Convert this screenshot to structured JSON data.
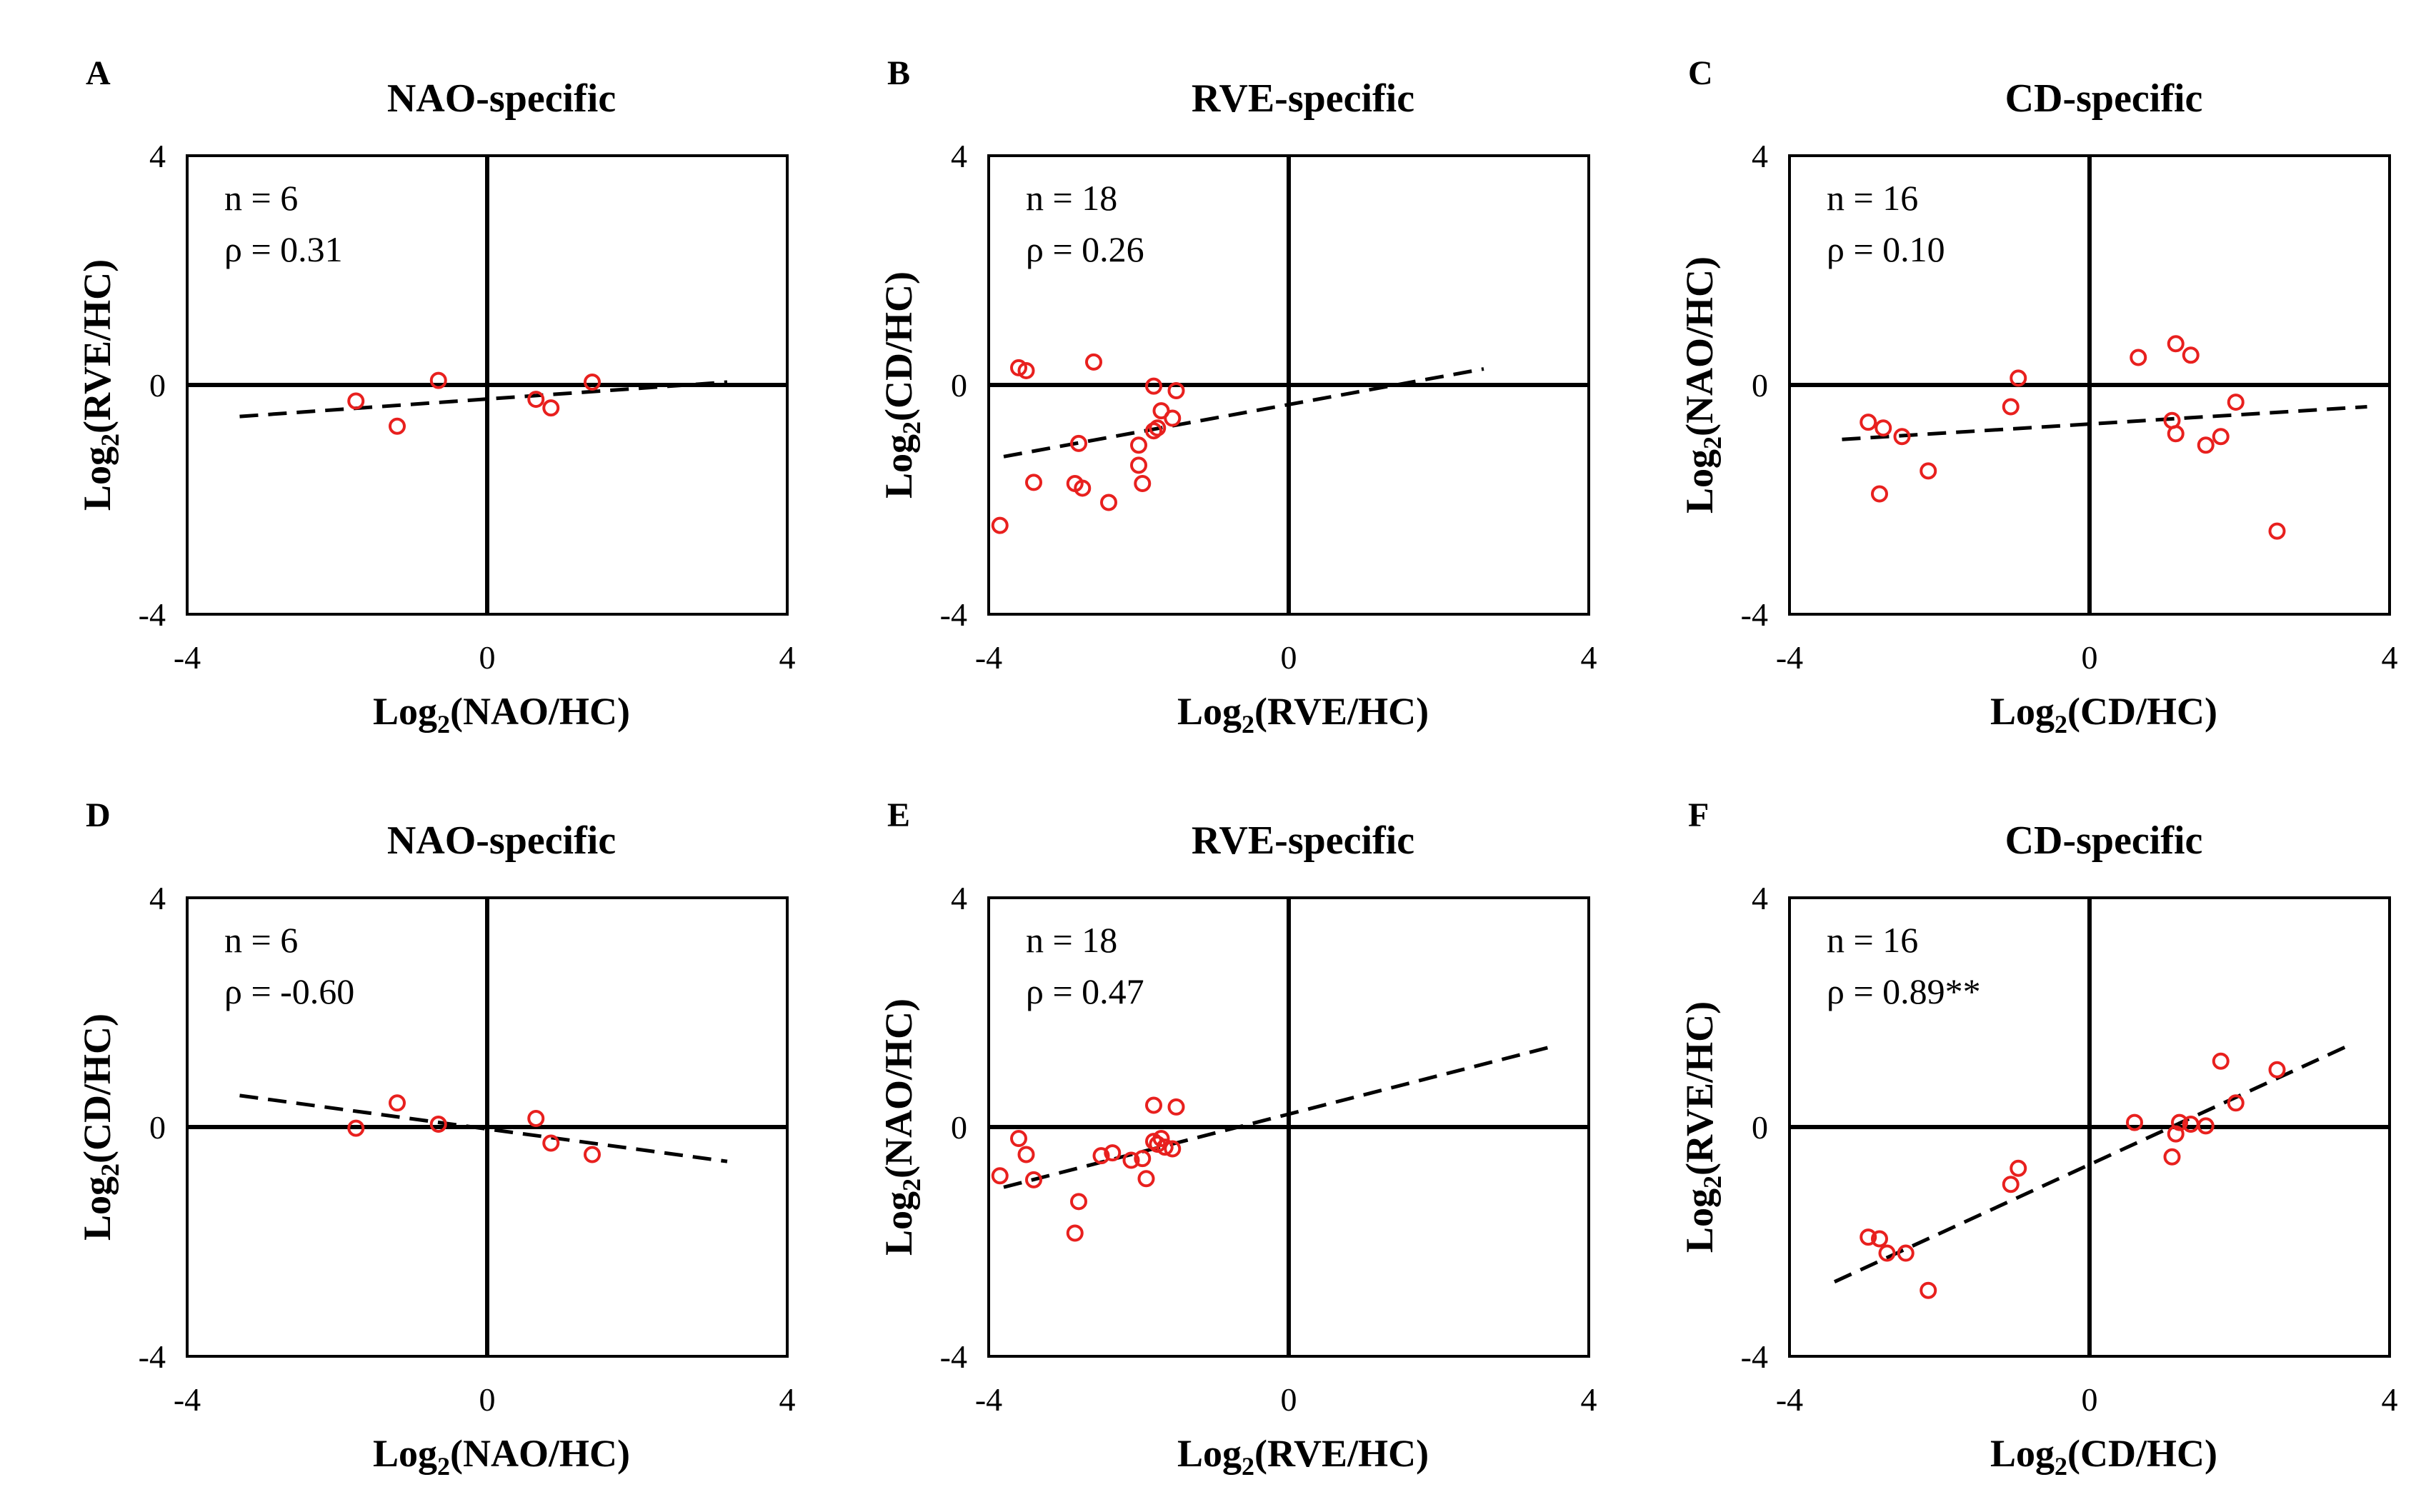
{
  "colors": {
    "point": "#e8201e",
    "axis": "#000000",
    "background": "#ffffff"
  },
  "chart_data": [
    {
      "panel": "A",
      "type": "scatter",
      "title": "NAO-specific",
      "xlabel": {
        "prefix": "Log",
        "sub": "2",
        "suffix": "(NAO/HC)"
      },
      "ylabel": {
        "prefix": "Log",
        "sub": "2",
        "suffix": "(RVE/HC)"
      },
      "xlim": [
        -4,
        4
      ],
      "ylim": [
        -4,
        4
      ],
      "xticks": [
        "-4",
        "0",
        "4"
      ],
      "yticks": [
        "4",
        "0",
        "-4"
      ],
      "n_text": "n = 6",
      "rho_text": "ρ = 0.31",
      "points": [
        [
          -1.75,
          -0.28
        ],
        [
          -1.2,
          -0.72
        ],
        [
          -0.65,
          0.08
        ],
        [
          0.65,
          -0.25
        ],
        [
          0.85,
          -0.4
        ],
        [
          1.4,
          0.05
        ]
      ],
      "trendline": [
        [
          -3.3,
          -0.55
        ],
        [
          3.2,
          0.05
        ]
      ]
    },
    {
      "panel": "B",
      "type": "scatter",
      "title": "RVE-specific",
      "xlabel": {
        "prefix": "Log",
        "sub": "2",
        "suffix": "(RVE/HC)"
      },
      "ylabel": {
        "prefix": "Log",
        "sub": "2",
        "suffix": "(CD/HC)"
      },
      "xlim": [
        -4,
        4
      ],
      "ylim": [
        -4,
        4
      ],
      "xticks": [
        "-4",
        "0",
        "4"
      ],
      "yticks": [
        "4",
        "0",
        "-4"
      ],
      "n_text": "n = 18",
      "rho_text": "ρ = 0.26",
      "points": [
        [
          -3.6,
          0.3
        ],
        [
          -3.5,
          0.25
        ],
        [
          -2.6,
          0.4
        ],
        [
          -1.8,
          -0.02
        ],
        [
          -1.5,
          -0.1
        ],
        [
          -1.7,
          -0.45
        ],
        [
          -1.55,
          -0.58
        ],
        [
          -1.8,
          -0.8
        ],
        [
          -2.0,
          -1.05
        ],
        [
          -2.8,
          -1.02
        ],
        [
          -2.0,
          -1.4
        ],
        [
          -1.95,
          -1.72
        ],
        [
          -3.4,
          -1.7
        ],
        [
          -2.85,
          -1.72
        ],
        [
          -2.75,
          -1.8
        ],
        [
          -2.4,
          -2.05
        ],
        [
          -3.85,
          -2.45
        ],
        [
          -1.75,
          -0.75
        ]
      ],
      "trendline": [
        [
          -3.8,
          -1.25
        ],
        [
          2.6,
          0.28
        ]
      ]
    },
    {
      "panel": "C",
      "type": "scatter",
      "title": "CD-specific",
      "xlabel": {
        "prefix": "Log",
        "sub": "2",
        "suffix": "(CD/HC)"
      },
      "ylabel": {
        "prefix": "Log",
        "sub": "2",
        "suffix": "(NAO/HC)"
      },
      "xlim": [
        -4,
        4
      ],
      "ylim": [
        -4,
        4
      ],
      "xticks": [
        "-4",
        "0",
        "4"
      ],
      "yticks": [
        "4",
        "0",
        "-4"
      ],
      "n_text": "n = 16",
      "rho_text": "ρ = 0.10",
      "points": [
        [
          -2.95,
          -0.65
        ],
        [
          -2.75,
          -0.75
        ],
        [
          -2.5,
          -0.9
        ],
        [
          -2.8,
          -1.9
        ],
        [
          -2.15,
          -1.5
        ],
        [
          -1.05,
          -0.38
        ],
        [
          -0.95,
          0.12
        ],
        [
          0.65,
          0.48
        ],
        [
          1.15,
          0.72
        ],
        [
          1.35,
          0.52
        ],
        [
          1.1,
          -0.62
        ],
        [
          1.15,
          -0.85
        ],
        [
          1.55,
          -1.05
        ],
        [
          1.75,
          -0.9
        ],
        [
          1.95,
          -0.3
        ],
        [
          2.5,
          -2.55
        ]
      ],
      "trendline": [
        [
          -3.3,
          -0.95
        ],
        [
          3.7,
          -0.38
        ]
      ]
    },
    {
      "panel": "D",
      "type": "scatter",
      "title": "NAO-specific",
      "xlabel": {
        "prefix": "Log",
        "sub": "2",
        "suffix": "(NAO/HC)"
      },
      "ylabel": {
        "prefix": "Log",
        "sub": "2",
        "suffix": "(CD/HC)"
      },
      "xlim": [
        -4,
        4
      ],
      "ylim": [
        -4,
        4
      ],
      "xticks": [
        "-4",
        "0",
        "4"
      ],
      "yticks": [
        "4",
        "0",
        "-4"
      ],
      "n_text": "n = 6",
      "rho_text": "ρ = -0.60",
      "points": [
        [
          -1.75,
          -0.02
        ],
        [
          -1.2,
          0.42
        ],
        [
          -0.65,
          0.05
        ],
        [
          0.65,
          0.15
        ],
        [
          0.85,
          -0.28
        ],
        [
          1.4,
          -0.48
        ]
      ],
      "trendline": [
        [
          -3.3,
          0.55
        ],
        [
          3.2,
          -0.6
        ]
      ]
    },
    {
      "panel": "E",
      "type": "scatter",
      "title": "RVE-specific",
      "xlabel": {
        "prefix": "Log",
        "sub": "2",
        "suffix": "(RVE/HC)"
      },
      "ylabel": {
        "prefix": "Log",
        "sub": "2",
        "suffix": "(NAO/HC)"
      },
      "xlim": [
        -4,
        4
      ],
      "ylim": [
        -4,
        4
      ],
      "xticks": [
        "-4",
        "0",
        "4"
      ],
      "yticks": [
        "4",
        "0",
        "-4"
      ],
      "n_text": "n = 18",
      "rho_text": "ρ = 0.47",
      "points": [
        [
          -3.6,
          -0.2
        ],
        [
          -3.5,
          -0.48
        ],
        [
          -3.85,
          -0.85
        ],
        [
          -3.4,
          -0.92
        ],
        [
          -2.5,
          -0.5
        ],
        [
          -2.35,
          -0.45
        ],
        [
          -2.1,
          -0.58
        ],
        [
          -1.95,
          -0.55
        ],
        [
          -1.9,
          -0.9
        ],
        [
          -1.8,
          -0.25
        ],
        [
          -1.7,
          -0.2
        ],
        [
          -1.55,
          -0.38
        ],
        [
          -1.8,
          0.38
        ],
        [
          -1.5,
          0.35
        ],
        [
          -2.8,
          -1.3
        ],
        [
          -2.85,
          -1.85
        ],
        [
          -1.75,
          -0.3
        ],
        [
          -1.65,
          -0.35
        ]
      ],
      "trendline": [
        [
          -3.8,
          -1.05
        ],
        [
          3.5,
          1.4
        ]
      ]
    },
    {
      "panel": "F",
      "type": "scatter",
      "title": "CD-specific",
      "xlabel": {
        "prefix": "Log",
        "sub": "2",
        "suffix": "(CD/HC)"
      },
      "ylabel": {
        "prefix": "Log",
        "sub": "2",
        "suffix": "(RVE/HC)"
      },
      "xlim": [
        -4,
        4
      ],
      "ylim": [
        -4,
        4
      ],
      "xticks": [
        "-4",
        "0",
        "4"
      ],
      "yticks": [
        "4",
        "0",
        "-4"
      ],
      "n_text": "n = 16",
      "rho_text": "ρ = 0.89**",
      "points": [
        [
          -2.95,
          -1.92
        ],
        [
          -2.8,
          -1.95
        ],
        [
          -2.7,
          -2.2
        ],
        [
          -2.45,
          -2.2
        ],
        [
          -2.15,
          -2.85
        ],
        [
          -1.05,
          -1.0
        ],
        [
          -0.95,
          -0.72
        ],
        [
          0.6,
          0.08
        ],
        [
          1.1,
          -0.52
        ],
        [
          1.15,
          -0.12
        ],
        [
          1.2,
          0.08
        ],
        [
          1.35,
          0.05
        ],
        [
          1.55,
          0.02
        ],
        [
          1.75,
          1.15
        ],
        [
          1.95,
          0.42
        ],
        [
          2.5,
          1.0
        ]
      ],
      "trendline": [
        [
          -3.4,
          -2.7
        ],
        [
          3.5,
          1.45
        ]
      ]
    }
  ]
}
